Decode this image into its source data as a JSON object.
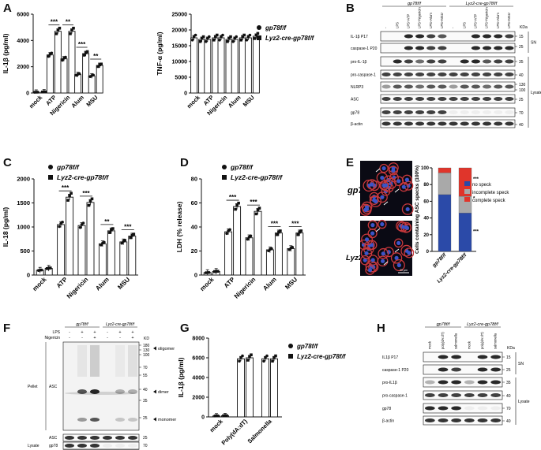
{
  "panel_letters": {
    "A": "A",
    "B": "B",
    "C": "C",
    "D": "D",
    "E": "E",
    "F": "F",
    "G": "G",
    "H": "H"
  },
  "colors": {
    "black": "#111111",
    "blue": "#2b4aa8",
    "gray": "#a9a9a9",
    "red": "#e0352b"
  },
  "legend_bw": {
    "wt": "gp78f/f",
    "ko": "Lyz2-cre-gp78f/f"
  },
  "legend_E": [
    "no speck",
    "incomplete speck",
    "complete speck"
  ],
  "chart_data": [
    {
      "panel": "A1",
      "type": "bar",
      "ylabel": "IL-1β (pg/ml)",
      "ylim": [
        0,
        6000
      ],
      "yticks": [
        0,
        2000,
        4000,
        6000
      ],
      "categories": [
        "mock",
        "ATP",
        "Nigericin",
        "Alum",
        "MSU"
      ],
      "series": [
        {
          "name": "gp78f/f",
          "values": [
            60,
            2900,
            2600,
            1400,
            1300
          ]
        },
        {
          "name": "Lyz2-cre-gp78f/f",
          "values": [
            80,
            4700,
            4700,
            3000,
            2100
          ]
        }
      ],
      "sig": [
        "",
        "***",
        "**",
        "***",
        "**"
      ]
    },
    {
      "panel": "A2",
      "type": "bar",
      "ylabel": "TNF-α (pg/ml)",
      "ylim": [
        0,
        25000
      ],
      "yticks": [
        0,
        5000,
        10000,
        15000,
        20000,
        25000
      ],
      "categories": [
        "mock",
        "ATP",
        "Nigericin",
        "Alum",
        "MSU"
      ],
      "series": [
        {
          "name": "gp78f/f",
          "values": [
            17500,
            17000,
            17500,
            17000,
            17500
          ]
        },
        {
          "name": "Lyz2-cre-gp78f/f",
          "values": [
            17000,
            17500,
            17000,
            17500,
            18000
          ]
        }
      ],
      "sig": [
        "",
        "",
        "",
        "",
        ""
      ]
    },
    {
      "panel": "C",
      "type": "bar",
      "ylabel": "IL-18 (pg/ml)",
      "ylim": [
        0,
        2000
      ],
      "yticks": [
        0,
        500,
        1000,
        1500,
        2000
      ],
      "categories": [
        "mock",
        "ATP",
        "Nigericin",
        "Alum",
        "MSU"
      ],
      "series": [
        {
          "name": "gp78f/f",
          "values": [
            100,
            1050,
            1030,
            650,
            690
          ]
        },
        {
          "name": "Lyz2-cre-gp78f/f",
          "values": [
            140,
            1620,
            1510,
            920,
            810
          ]
        }
      ],
      "sig": [
        "",
        "***",
        "***",
        "**",
        "***"
      ]
    },
    {
      "panel": "D",
      "type": "bar",
      "ylabel": "LDH (% release)",
      "ylim": [
        0,
        80
      ],
      "yticks": [
        0,
        20,
        40,
        60,
        80
      ],
      "categories": [
        "mock",
        "ATP",
        "Nigericin",
        "Alum",
        "MSU"
      ],
      "series": [
        {
          "name": "gp78f/f",
          "values": [
            2,
            36,
            31,
            21,
            22
          ]
        },
        {
          "name": "Lyz2-cre-gp78f/f",
          "values": [
            3,
            57,
            53,
            35,
            35
          ]
        }
      ],
      "sig": [
        "",
        "***",
        "***",
        "***",
        "***"
      ]
    },
    {
      "panel": "E",
      "type": "bar",
      "ylabel": "Cells containing ASC specks (100%)",
      "ylim": [
        0,
        100
      ],
      "yticks": [
        0,
        20,
        40,
        60,
        80,
        100
      ],
      "categories": [
        "gp78f/f",
        "Lyz2-cre-gp78f/f"
      ],
      "series": [
        {
          "name": "no speck",
          "values": [
            68,
            46
          ]
        },
        {
          "name": "incomplete speck",
          "values": [
            26,
            20
          ]
        },
        {
          "name": "complete speck",
          "values": [
            6,
            34
          ]
        }
      ],
      "sig": [
        "***",
        "*",
        "***"
      ]
    },
    {
      "panel": "G",
      "type": "bar",
      "ylabel": "IL-1β (pg/ml)",
      "ylim": [
        0,
        8000
      ],
      "yticks": [
        0,
        2000,
        4000,
        6000,
        8000
      ],
      "categories": [
        "mock",
        "Poly(dA:dT)",
        "Salmonella"
      ],
      "series": [
        {
          "name": "gp78f/f",
          "values": [
            100,
            5900,
            5900
          ]
        },
        {
          "name": "Lyz2-cre-gp78f/f",
          "values": [
            120,
            6000,
            5900
          ]
        }
      ],
      "sig": [
        "",
        "",
        ""
      ]
    }
  ],
  "blotB": {
    "groups": [
      "gp78f/f",
      "Lyz2-cre-gp78f/f"
    ],
    "lanes": [
      "-",
      "LPS",
      "LPS+ATP",
      "LPS+Nigericin",
      "LPS+Alum",
      "LPS+MSU",
      "-",
      "LPS",
      "LPS+ATP",
      "LPS+Nigericin",
      "LPS+Alum",
      "LPS+MSU"
    ],
    "rows": [
      "IL-1β P17",
      "caspase-1 P20",
      "pro-IL-1β",
      "pro-caspase-1",
      "NLRP3",
      "ASC",
      "gp78",
      "β-actin"
    ],
    "kda_title": "KDa",
    "sn": "SN",
    "lysate": "Lysate",
    "markers": [
      "15",
      "25",
      "35",
      "40",
      "130",
      "100",
      "25",
      "70",
      "40"
    ]
  },
  "blotF": {
    "groups": [
      "gp78f/f",
      "Lyz2-cre-gp78f/f"
    ],
    "lps": "LPS",
    "nig": "Nigericin",
    "kd": "KD",
    "signs_lps": [
      "-",
      "+",
      "+",
      "-",
      "+",
      "+"
    ],
    "signs_nig": [
      "-",
      "-",
      "+",
      "-",
      "-",
      "+"
    ],
    "pellet": "Pellet",
    "asc": "ASC",
    "lysate": "Lysate",
    "lys_rows": [
      "ASC",
      "gp78",
      "β-actin"
    ],
    "markers": [
      "180",
      "130",
      "100",
      "70",
      "55",
      "40",
      "35",
      "25"
    ],
    "lys_markers": [
      "25",
      "70",
      "40"
    ],
    "arrows": [
      "oligomer",
      "dimer",
      "monomer"
    ]
  },
  "blotH": {
    "groups": [
      "gp78f/f",
      "Lyz2-cre-gp78f/f"
    ],
    "lanes": [
      "mock",
      "poly(dA:dT)",
      "salmonella",
      "mock",
      "poly(dA:dT)",
      "salmonella"
    ],
    "rows": [
      "IL1β P17",
      "caspase-1 P20",
      "pro-IL1β",
      "pro-caspase-1",
      "gp78",
      "β-actin"
    ],
    "kda": "KDa",
    "sn": "SN",
    "lysate": "Lysate",
    "markers": [
      "15",
      "25",
      "35",
      "40",
      "70",
      "40"
    ]
  },
  "micro": {
    "wt": "gp78f/f",
    "ko": "Lyz2-cre-gp78f/f",
    "scale": "20 μm"
  }
}
